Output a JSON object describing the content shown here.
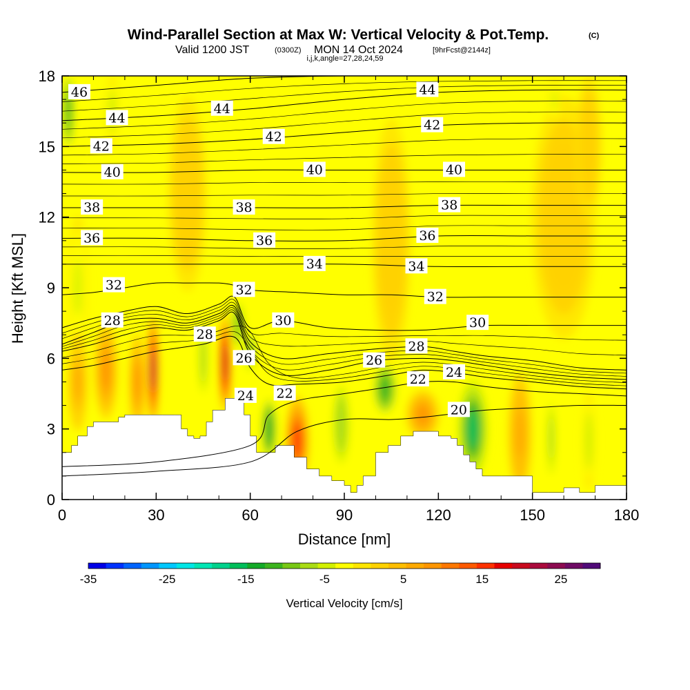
{
  "chart_data": {
    "type": "heatmap",
    "title": "Wind-Parallel Section at Max W: Vertical Velocity & Pot.Temp.",
    "title_mark": "(C)",
    "subtitle": {
      "valid": "Valid 1200 JST",
      "zulu": "(0300Z)",
      "date": "MON 14 Oct 2024",
      "forecast": "[9hrFcst@2144z]"
    },
    "section_info": "i,j,k,angle=27,28,24,59",
    "xlabel": "Distance [nm]",
    "ylabel": "Height [Kft MSL]",
    "xlim": [
      0,
      180
    ],
    "ylim": [
      0,
      18
    ],
    "x_ticks": [
      0,
      30,
      60,
      90,
      120,
      150,
      180
    ],
    "y_ticks": [
      0,
      3,
      6,
      9,
      12,
      15,
      18
    ],
    "colorbar": {
      "label": "Vertical Velocity [cm/s]",
      "range": [
        -35,
        30
      ],
      "tick_values": [
        -35,
        -25,
        -15,
        -5,
        5,
        15,
        25
      ],
      "colors": [
        "#0000e6",
        "#0032ff",
        "#0064ff",
        "#0096ff",
        "#00c8ff",
        "#00e6e6",
        "#00e6b4",
        "#00d28c",
        "#00be5a",
        "#14aa28",
        "#3cb41e",
        "#78c814",
        "#aadc14",
        "#d2f000",
        "#ffff00",
        "#ffe600",
        "#ffd200",
        "#ffbe00",
        "#ffaa00",
        "#ff9600",
        "#ff7800",
        "#ff5a00",
        "#ff3200",
        "#e60000",
        "#c80a1e",
        "#aa0a3c",
        "#8c0a50",
        "#6e0a64",
        "#500a78"
      ]
    },
    "terrain_profile": {
      "x": [
        0,
        3,
        5,
        8,
        10,
        12,
        14,
        16,
        18,
        20,
        24,
        28,
        32,
        36,
        38,
        40,
        42,
        44,
        46,
        48,
        50,
        52,
        54,
        56,
        58,
        60,
        62,
        64,
        66,
        68,
        70,
        74,
        78,
        82,
        86,
        88,
        90,
        92,
        94,
        96,
        100,
        104,
        108,
        112,
        116,
        120,
        124,
        126,
        128,
        130,
        132,
        134,
        140,
        150,
        155,
        160,
        165,
        170,
        180
      ],
      "y": [
        2.0,
        2.3,
        2.7,
        3.1,
        3.3,
        3.3,
        3.3,
        3.3,
        3.5,
        3.6,
        3.6,
        3.6,
        3.6,
        3.6,
        3.0,
        2.7,
        2.6,
        2.7,
        3.3,
        3.8,
        3.8,
        4.3,
        4.3,
        4.3,
        3.6,
        2.7,
        2.0,
        2.0,
        2.0,
        2.3,
        2.3,
        1.8,
        1.3,
        1.0,
        0.8,
        0.8,
        0.6,
        0.3,
        0.6,
        1.0,
        2.0,
        2.3,
        2.7,
        2.9,
        2.9,
        2.7,
        2.6,
        2.3,
        1.9,
        1.6,
        1.3,
        1.0,
        1.0,
        0.3,
        0.3,
        0.5,
        0.3,
        0.6,
        0.6
      ]
    },
    "contour_labels": [
      {
        "text": "46",
        "x": 5.5,
        "y": 17.3
      },
      {
        "text": "44",
        "x": 17.5,
        "y": 16.2
      },
      {
        "text": "44",
        "x": 51,
        "y": 16.6
      },
      {
        "text": "44",
        "x": 116.5,
        "y": 17.4
      },
      {
        "text": "42",
        "x": 12.5,
        "y": 15.0
      },
      {
        "text": "42",
        "x": 67.5,
        "y": 15.4
      },
      {
        "text": "42",
        "x": 118,
        "y": 15.9
      },
      {
        "text": "40",
        "x": 16,
        "y": 13.9
      },
      {
        "text": "40",
        "x": 80.5,
        "y": 14.0
      },
      {
        "text": "40",
        "x": 125,
        "y": 14.0
      },
      {
        "text": "38",
        "x": 9.5,
        "y": 12.4
      },
      {
        "text": "38",
        "x": 58,
        "y": 12.4
      },
      {
        "text": "38",
        "x": 123.5,
        "y": 12.5
      },
      {
        "text": "36",
        "x": 9.5,
        "y": 11.1
      },
      {
        "text": "36",
        "x": 64.5,
        "y": 11.0
      },
      {
        "text": "36",
        "x": 116.5,
        "y": 11.2
      },
      {
        "text": "34",
        "x": 80.5,
        "y": 10.0
      },
      {
        "text": "34",
        "x": 113,
        "y": 9.9
      },
      {
        "text": "32",
        "x": 16.5,
        "y": 9.1
      },
      {
        "text": "32",
        "x": 58,
        "y": 8.9
      },
      {
        "text": "32",
        "x": 119,
        "y": 8.6
      },
      {
        "text": "30",
        "x": 70.5,
        "y": 7.6
      },
      {
        "text": "30",
        "x": 132.5,
        "y": 7.5
      },
      {
        "text": "28",
        "x": 16,
        "y": 7.6
      },
      {
        "text": "28",
        "x": 45.5,
        "y": 7.0
      },
      {
        "text": "28",
        "x": 113,
        "y": 6.5
      },
      {
        "text": "26",
        "x": 58,
        "y": 6.0
      },
      {
        "text": "26",
        "x": 99.5,
        "y": 5.9
      },
      {
        "text": "24",
        "x": 58.5,
        "y": 4.4
      },
      {
        "text": "24",
        "x": 125,
        "y": 5.4
      },
      {
        "text": "22",
        "x": 71,
        "y": 4.5
      },
      {
        "text": "22",
        "x": 113.5,
        "y": 5.1
      },
      {
        "text": "20",
        "x": 126.5,
        "y": 3.8
      }
    ],
    "isentropes": [
      {
        "theta": 20,
        "x": [
          0,
          30,
          60,
          75,
          90,
          105,
          115,
          125,
          135,
          150,
          165,
          180
        ],
        "y": [
          1.0,
          1.2,
          1.6,
          2.9,
          3.4,
          3.4,
          3.5,
          3.65,
          3.8,
          3.9,
          4.0,
          4.0
        ]
      },
      {
        "theta": 22,
        "x": [
          0,
          30,
          60,
          66,
          75,
          90,
          105,
          115,
          125,
          135,
          150,
          165,
          180
        ],
        "y": [
          1.4,
          1.6,
          2.3,
          3.6,
          4.2,
          4.5,
          4.8,
          5.0,
          5.0,
          4.8,
          4.6,
          4.5,
          4.4
        ]
      },
      {
        "theta": 24,
        "x": [
          0,
          10,
          20,
          30,
          45,
          55,
          60,
          66,
          75,
          90,
          105,
          115,
          125,
          135,
          150,
          165,
          180
        ],
        "y": [
          5.5,
          5.7,
          6.0,
          6.3,
          6.6,
          6.9,
          5.6,
          4.9,
          4.9,
          5.0,
          5.3,
          5.5,
          5.4,
          5.2,
          5.0,
          4.8,
          4.7
        ]
      },
      {
        "theta": 26,
        "x": [
          0,
          10,
          20,
          30,
          40,
          50,
          55,
          60,
          70,
          85,
          100,
          115,
          125,
          135,
          150,
          165,
          180
        ],
        "y": [
          6.3,
          6.6,
          7.0,
          7.3,
          7.2,
          7.6,
          7.9,
          6.2,
          5.3,
          5.5,
          5.9,
          6.0,
          5.9,
          5.7,
          5.4,
          5.2,
          5.1
        ]
      },
      {
        "theta": 28,
        "x": [
          0,
          10,
          20,
          30,
          40,
          50,
          55,
          60,
          70,
          85,
          100,
          115,
          125,
          135,
          150,
          165,
          180
        ],
        "y": [
          6.6,
          7.1,
          7.6,
          7.7,
          7.5,
          7.9,
          8.2,
          6.7,
          6.0,
          6.2,
          6.4,
          6.5,
          6.3,
          6.1,
          5.9,
          5.6,
          5.5
        ]
      },
      {
        "theta": 30,
        "x": [
          0,
          10,
          20,
          30,
          40,
          50,
          55,
          60,
          70,
          85,
          100,
          115,
          125,
          135,
          150,
          165,
          180
        ],
        "y": [
          7.3,
          7.7,
          8.0,
          8.2,
          7.9,
          8.3,
          8.6,
          7.3,
          7.6,
          7.3,
          7.2,
          7.2,
          7.3,
          7.4,
          7.4,
          7.4,
          7.4
        ]
      },
      {
        "theta": 32,
        "x": [
          0,
          10,
          20,
          30,
          40,
          50,
          55,
          60,
          75,
          90,
          105,
          120,
          135,
          150,
          165,
          180
        ],
        "y": [
          8.7,
          8.8,
          9.0,
          9.2,
          9.2,
          9.2,
          9.1,
          8.9,
          8.8,
          8.7,
          8.7,
          8.6,
          8.6,
          8.6,
          8.6,
          8.6
        ]
      },
      {
        "theta": 34,
        "x": [
          0,
          30,
          60,
          90,
          120,
          150,
          180
        ],
        "y": [
          10.0,
          10.0,
          10.0,
          10.0,
          9.9,
          9.9,
          9.9
        ]
      },
      {
        "theta": 36,
        "x": [
          0,
          30,
          60,
          90,
          120,
          150,
          180
        ],
        "y": [
          11.1,
          11.1,
          11.0,
          11.0,
          11.2,
          11.2,
          11.2
        ]
      },
      {
        "theta": 38,
        "x": [
          0,
          30,
          60,
          90,
          120,
          150,
          180
        ],
        "y": [
          12.4,
          12.4,
          12.4,
          12.4,
          12.5,
          12.5,
          12.5
        ]
      },
      {
        "theta": 40,
        "x": [
          0,
          30,
          60,
          90,
          120,
          150,
          180
        ],
        "y": [
          13.9,
          13.9,
          14.0,
          14.0,
          14.0,
          14.0,
          14.0
        ]
      },
      {
        "theta": 42,
        "x": [
          0,
          30,
          60,
          90,
          120,
          150,
          180
        ],
        "y": [
          15.0,
          15.1,
          15.3,
          15.6,
          15.9,
          16.0,
          16.0
        ]
      },
      {
        "theta": 44,
        "x": [
          0,
          30,
          60,
          90,
          120,
          150,
          180
        ],
        "y": [
          16.1,
          16.3,
          16.6,
          17.0,
          17.3,
          17.4,
          17.4
        ]
      },
      {
        "theta": 46,
        "x": [
          0,
          30,
          60,
          90,
          120,
          150,
          180
        ],
        "y": [
          17.3,
          17.6,
          17.9,
          18.0,
          18.0,
          18.0,
          18.0
        ]
      }
    ],
    "vertical_velocity_cells": [
      {
        "x": 2,
        "y": 16.5,
        "w": -12,
        "rx": 2,
        "ry": 1.8
      },
      {
        "x": 5,
        "y": 9.0,
        "w": -4,
        "rx": 3,
        "ry": 3.0
      },
      {
        "x": 16,
        "y": 16.5,
        "w": -5,
        "rx": 2,
        "ry": 1.5
      },
      {
        "x": 29,
        "y": 5.5,
        "w": 22,
        "rx": 1.6,
        "ry": 2.2
      },
      {
        "x": 24,
        "y": 5.0,
        "w": 9,
        "rx": 2.5,
        "ry": 2.0
      },
      {
        "x": 14,
        "y": 5.5,
        "w": 8,
        "rx": 3.5,
        "ry": 2.0
      },
      {
        "x": 5,
        "y": 5.0,
        "w": 6,
        "rx": 3.0,
        "ry": 2.0
      },
      {
        "x": 45,
        "y": 6.0,
        "w": -8,
        "rx": 1.5,
        "ry": 1.8
      },
      {
        "x": 52,
        "y": 5.8,
        "w": 20,
        "rx": 1.8,
        "ry": 2.0
      },
      {
        "x": 56,
        "y": 7.4,
        "w": -10,
        "rx": 2.5,
        "ry": 1.2
      },
      {
        "x": 60,
        "y": 6.3,
        "w": -10,
        "rx": 2.0,
        "ry": 1.0
      },
      {
        "x": 66,
        "y": 3.0,
        "w": -14,
        "rx": 2.5,
        "ry": 1.5
      },
      {
        "x": 75,
        "y": 2.5,
        "w": 15,
        "rx": 3.5,
        "ry": 1.8
      },
      {
        "x": 89,
        "y": 3.2,
        "w": -8,
        "rx": 3.0,
        "ry": 2.0
      },
      {
        "x": 103,
        "y": 4.7,
        "w": -12,
        "rx": 4.0,
        "ry": 1.2
      },
      {
        "x": 115,
        "y": 3.6,
        "w": 9,
        "rx": 5.0,
        "ry": 1.0
      },
      {
        "x": 131,
        "y": 3.0,
        "w": -16,
        "rx": 4.5,
        "ry": 2.0
      },
      {
        "x": 146,
        "y": 2.8,
        "w": 7,
        "rx": 3.5,
        "ry": 2.5
      },
      {
        "x": 156,
        "y": 2.6,
        "w": -7,
        "rx": 2.0,
        "ry": 2.5
      },
      {
        "x": 168,
        "y": 2.5,
        "w": -5,
        "rx": 2.0,
        "ry": 2.0
      },
      {
        "x": 105,
        "y": 11.0,
        "w": 3,
        "rx": 6,
        "ry": 5
      },
      {
        "x": 160,
        "y": 12.0,
        "w": 3,
        "rx": 10,
        "ry": 5
      },
      {
        "x": 40,
        "y": 13.0,
        "w": 2,
        "rx": 6,
        "ry": 4
      },
      {
        "x": 157,
        "y": 17.0,
        "w": -4,
        "rx": 2,
        "ry": 1.0
      },
      {
        "x": 168,
        "y": 15.0,
        "w": 3,
        "rx": 4,
        "ry": 3
      }
    ]
  },
  "colors": {
    "background": "#ffffff",
    "plot_base": "#ffff00",
    "terrain": "#ffffff",
    "contour": "#000000"
  }
}
